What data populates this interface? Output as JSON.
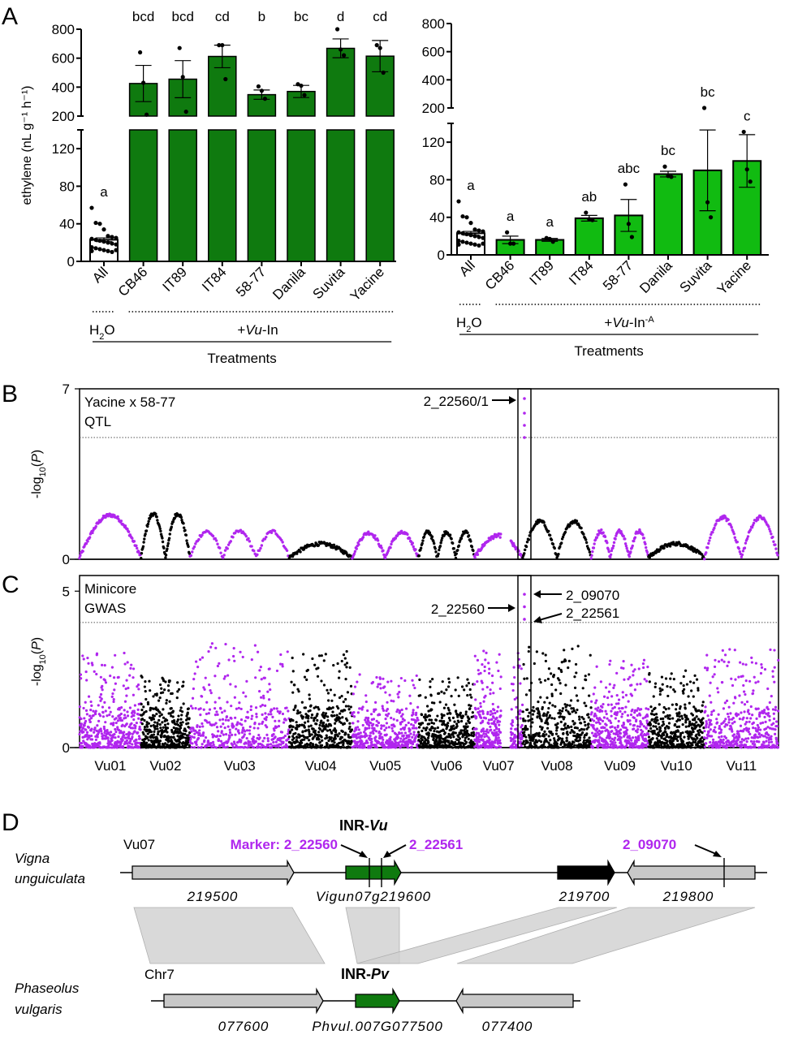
{
  "figure": {
    "panels": [
      "A",
      "B",
      "C",
      "D"
    ]
  },
  "chart_data": [
    {
      "id": "A-left",
      "type": "bar",
      "panel": "A",
      "ylabel": "ethylene (nL g⁻¹ h⁻¹)",
      "y_axis_break": true,
      "ylim_lower": [
        0,
        140
      ],
      "ylim_upper": [
        200,
        800
      ],
      "yticks_lower": [
        0,
        40,
        80,
        120
      ],
      "yticks_upper": [
        200,
        400,
        600,
        800
      ],
      "categories": [
        "All",
        "CB46",
        "IT89",
        "IT84",
        "58-77",
        "Danila",
        "Suvita",
        "Yacine"
      ],
      "values": [
        23,
        425,
        455,
        612,
        348,
        370,
        668,
        614
      ],
      "sem": [
        2,
        125,
        128,
        78,
        32,
        42,
        65,
        108
      ],
      "points": [
        [
          57,
          41,
          40,
          34,
          27,
          26,
          25,
          24,
          23,
          22,
          21,
          20,
          19,
          18,
          15,
          14,
          13,
          12,
          11,
          10,
          12,
          11
        ],
        [
          640,
          430,
          210
        ],
        [
          670,
          470,
          230
        ],
        [
          690,
          690,
          455
        ],
        [
          405,
          375,
          320
        ],
        [
          420,
          410,
          345
        ],
        [
          800,
          660,
          620
        ],
        [
          690,
          670,
          500
        ]
      ],
      "significance": [
        "a",
        "bcd",
        "bcd",
        "cd",
        "b",
        "bc",
        "d",
        "cd"
      ],
      "bar_colors": [
        "#ffffff",
        "#0f7a0f",
        "#0f7a0f",
        "#0f7a0f",
        "#0f7a0f",
        "#0f7a0f",
        "#0f7a0f",
        "#0f7a0f"
      ],
      "group_labels": [
        "H₂O",
        "+Vu-In"
      ],
      "group_label_parts": {
        "h2o_main": "H",
        "h2o_sub": "2",
        "h2o_end": "O",
        "treat_plus": "+",
        "treat_ital": "Vu",
        "treat_rest": "-In",
        "treat_sup": ""
      },
      "xlabel": "Treatments"
    },
    {
      "id": "A-right",
      "type": "bar",
      "panel": "A",
      "ylabel": "",
      "y_axis_break": true,
      "ylim_lower": [
        0,
        140
      ],
      "ylim_upper": [
        200,
        800
      ],
      "yticks_lower": [
        0,
        40,
        80,
        120
      ],
      "yticks_upper": [
        200,
        400,
        600,
        800
      ],
      "categories": [
        "All",
        "CB46",
        "IT89",
        "IT84",
        "58-77",
        "Danila",
        "Suvita",
        "Yacine"
      ],
      "values": [
        23,
        16,
        16,
        39,
        42,
        86,
        90,
        100
      ],
      "sem": [
        2,
        4,
        1.5,
        3,
        17,
        3,
        43,
        28
      ],
      "points": [
        [
          57,
          41,
          40,
          34,
          27,
          26,
          25,
          24,
          23,
          22,
          21,
          20,
          19,
          18,
          15,
          14,
          13,
          12,
          11,
          10,
          12,
          11
        ],
        [
          24,
          12,
          12
        ],
        [
          18,
          17,
          14
        ],
        [
          45,
          38,
          37
        ],
        [
          75,
          33,
          19
        ],
        [
          94,
          84,
          83
        ],
        [
          200,
          56,
          40
        ],
        [
          131,
          91,
          78
        ]
      ],
      "significance": [
        "a",
        "a",
        "a",
        "ab",
        "abc",
        "bc",
        "bc",
        "c"
      ],
      "bar_colors": [
        "#ffffff",
        "#11bb11",
        "#11bb11",
        "#11bb11",
        "#11bb11",
        "#11bb11",
        "#11bb11",
        "#11bb11"
      ],
      "group_labels": [
        "H₂O",
        "+Vu-In⁻ᴬ"
      ],
      "group_label_parts": {
        "h2o_main": "H",
        "h2o_sub": "2",
        "h2o_end": "O",
        "treat_plus": "+",
        "treat_ital": "Vu",
        "treat_rest": "-In",
        "treat_sup": "-A"
      },
      "xlabel": "Treatments"
    },
    {
      "id": "B",
      "type": "scatter",
      "panel": "B",
      "title": "Yacine x 58-77",
      "subtitle": "QTL",
      "ylabel": "-log10(P)",
      "ylabel_parts": {
        "pre": "-log",
        "sub": "10",
        "post": "(",
        "ital": "P",
        "end": ")"
      },
      "ylim": [
        0,
        7
      ],
      "yticks": [
        0,
        7
      ],
      "threshold": 5.0,
      "highlight_chromosome": "Vu07",
      "annotation": "2_22560/1",
      "peak_values": [
        6.6,
        6.0,
        5.5,
        5.0
      ],
      "colors": {
        "odd": "#b026ee",
        "even": "#000000"
      }
    },
    {
      "id": "C",
      "type": "scatter",
      "panel": "C",
      "title": "Minicore",
      "subtitle": "GWAS",
      "ylabel": "-log10(P)",
      "ylabel_parts": {
        "pre": "-log",
        "sub": "10",
        "post": "(",
        "ital": "P",
        "end": ")"
      },
      "ylim": [
        0,
        5.5
      ],
      "yticks": [
        0,
        5
      ],
      "threshold": 4.0,
      "highlight_chromosome": "Vu07",
      "annotations": [
        "2_09070",
        "2_22560",
        "2_22561"
      ],
      "peak_values": [
        4.9,
        4.5,
        4.1
      ],
      "x_categories": [
        "Vu01",
        "Vu02",
        "Vu03",
        "Vu04",
        "Vu05",
        "Vu06",
        "Vu07",
        "Vu08",
        "Vu09",
        "Vu10",
        "Vu11"
      ],
      "colors": {
        "odd": "#b026ee",
        "even": "#000000"
      }
    }
  ],
  "panel_d": {
    "title_vu": {
      "bold": "INR-",
      "ital": "Vu"
    },
    "title_pv": {
      "bold": "INR-",
      "ital": "Pv"
    },
    "vigna": {
      "species_line1": "Vigna",
      "species_line2": "unguiculata",
      "chrom": "Vu07",
      "markers": [
        "Marker: 2_22560",
        "2_22561",
        "2_09070"
      ],
      "genes": [
        {
          "label": "219500",
          "color": "#c8c8c8",
          "dir": "right"
        },
        {
          "label": "Vigun07g219600",
          "color": "#0f7a0f",
          "dir": "right"
        },
        {
          "label": "219700",
          "color": "#000000",
          "dir": "right"
        },
        {
          "label": "219800",
          "color": "#c8c8c8",
          "dir": "left"
        }
      ]
    },
    "phaseolus": {
      "species_line1": "Phaseolus",
      "species_line2": "vulgaris",
      "chrom": "Chr7",
      "genes": [
        {
          "label": "077600",
          "color": "#c8c8c8",
          "dir": "right"
        },
        {
          "label": "Phvul.007G077500",
          "color": "#0f7a0f",
          "dir": "right"
        },
        {
          "label": "077400",
          "color": "#c8c8c8",
          "dir": "left"
        }
      ]
    },
    "marker_color": "#b026ee"
  }
}
